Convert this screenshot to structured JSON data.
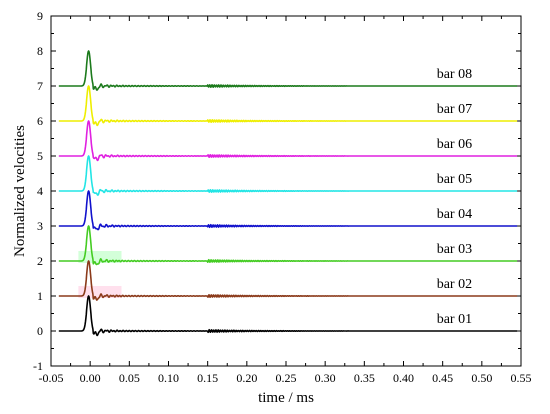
{
  "chart_data": {
    "type": "line",
    "xlabel": "time / ms",
    "ylabel": "Normalized velocities",
    "xlim": [
      -0.05,
      0.55
    ],
    "ylim": [
      -1,
      9
    ],
    "xticks": [
      "-0.05",
      "0.00",
      "0.05",
      "0.10",
      "0.15",
      "0.20",
      "0.25",
      "0.30",
      "0.35",
      "0.40",
      "0.45",
      "0.50",
      "0.55"
    ],
    "yticks": [
      "-1",
      "0",
      "1",
      "2",
      "3",
      "4",
      "5",
      "6",
      "7",
      "8",
      "9"
    ],
    "pulse_time_ms": -0.002,
    "pulse_peak_height": 1.0,
    "series": [
      {
        "name": "bar 01",
        "baseline": 0,
        "color": "#000000"
      },
      {
        "name": "bar 02",
        "baseline": 1,
        "color": "#8b3a1a",
        "band_color": "#ffd8e8"
      },
      {
        "name": "bar 03",
        "baseline": 2,
        "color": "#44cc22",
        "band_color": "#c8ffd0"
      },
      {
        "name": "bar 04",
        "baseline": 3,
        "color": "#1111cc"
      },
      {
        "name": "bar 05",
        "baseline": 4,
        "color": "#22e5e5"
      },
      {
        "name": "bar 06",
        "baseline": 5,
        "color": "#e020e0"
      },
      {
        "name": "bar 07",
        "baseline": 6,
        "color": "#eeee00"
      },
      {
        "name": "bar 08",
        "baseline": 7,
        "color": "#1c7a1c"
      }
    ]
  }
}
